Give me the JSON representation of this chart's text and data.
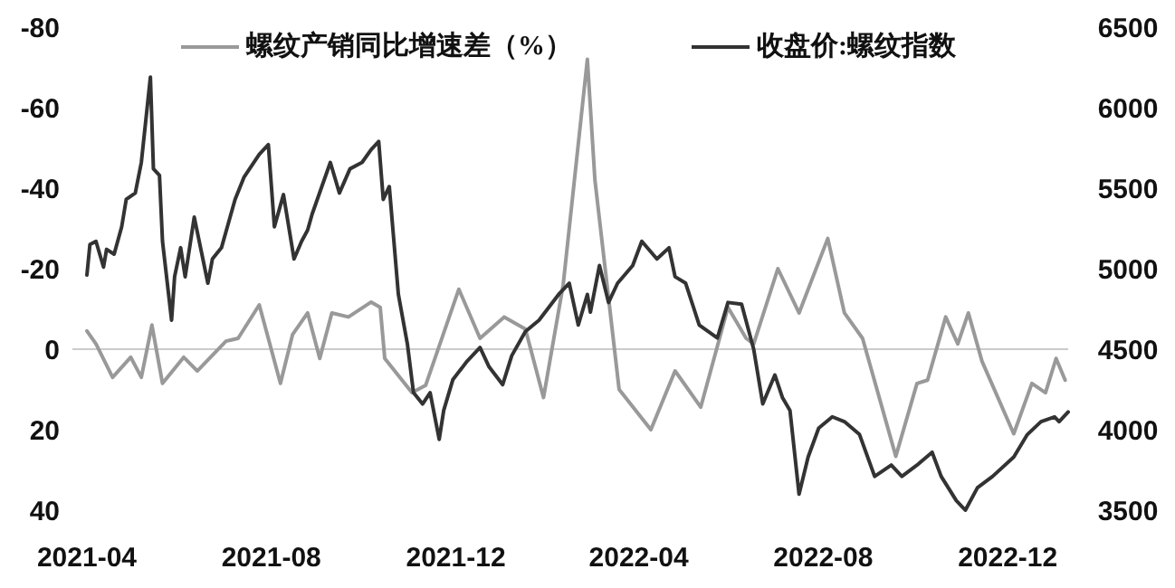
{
  "chart_data": {
    "type": "line",
    "legend": "top",
    "line_style": "solid",
    "marker": "none",
    "grid": false,
    "xlim": [
      "2021-04-01",
      "2023-01-10"
    ],
    "xticks": [
      "2021-04",
      "2021-08",
      "2021-12",
      "2022-04",
      "2022-08",
      "2022-12"
    ],
    "ylim": [
      40,
      -80
    ],
    "yticks": [
      -80,
      -60,
      -40,
      -20,
      0,
      20,
      40
    ],
    "y2lim": [
      3500,
      6500
    ],
    "y2ticks": [
      3500,
      4000,
      4500,
      5000,
      5500,
      6000,
      6500
    ],
    "ref_lines": [
      {
        "axis": "y",
        "value": 0,
        "color": "#cccccc"
      }
    ],
    "series": [
      {
        "name": "螺纹产销同比增速差（%）",
        "color": "#999999",
        "x": [
          "2021-04-01",
          "2021-04-07",
          "2021-04-18",
          "2021-04-30",
          "2021-05-07",
          "2021-05-14",
          "2021-05-21",
          "2021-06-04",
          "2021-06-13",
          "2021-07-02",
          "2021-07-10",
          "2021-07-24",
          "2021-08-07",
          "2021-08-15",
          "2021-08-25",
          "2021-09-02",
          "2021-09-10",
          "2021-09-21",
          "2021-10-06",
          "2021-10-12",
          "2021-10-15",
          "2021-11-02",
          "2021-11-11",
          "2021-12-03",
          "2021-12-17",
          "2022-01-02",
          "2022-01-16",
          "2022-01-28",
          "2022-02-10",
          "2022-02-26",
          "2022-03-03",
          "2022-03-19",
          "2022-04-09",
          "2022-04-25",
          "2022-05-12",
          "2022-05-30",
          "2022-06-11",
          "2022-06-16",
          "2022-07-02",
          "2022-07-16",
          "2022-08-04",
          "2022-08-15",
          "2022-08-27",
          "2022-09-18",
          "2022-10-02",
          "2022-10-09",
          "2022-10-21",
          "2022-10-29",
          "2022-11-05",
          "2022-11-14",
          "2022-12-05",
          "2022-12-17",
          "2022-12-26",
          "2023-01-02",
          "2023-01-08"
        ],
        "values": [
          -4.5,
          -1.3,
          7,
          2,
          7,
          -6,
          8.5,
          2,
          5.4,
          -2,
          -2.7,
          -11,
          8.5,
          -3.6,
          -9,
          2.3,
          -9,
          -8,
          -11.7,
          -10.4,
          2.3,
          10.8,
          9,
          -14.9,
          -2.7,
          -8,
          -5,
          12,
          -16,
          -72,
          -42,
          10,
          20,
          5.4,
          14.4,
          -10.4,
          -2.7,
          -1.3,
          -20,
          -9,
          -27.5,
          -9,
          -2.7,
          26.6,
          8.5,
          7.7,
          -8,
          -1.3,
          -9,
          3,
          21,
          8.5,
          10.8,
          2.3,
          7.7
        ]
      },
      {
        "name": "收盘价:螺纹指数",
        "color": "#333333",
        "axis": "y2",
        "x": [
          "2021-04-01",
          "2021-04-03",
          "2021-04-07",
          "2021-04-12",
          "2021-04-14",
          "2021-04-19",
          "2021-04-24",
          "2021-04-27",
          "2021-05-03",
          "2021-05-07",
          "2021-05-13",
          "2021-05-15",
          "2021-05-19",
          "2021-05-21",
          "2021-05-27",
          "2021-05-29",
          "2021-06-02",
          "2021-06-05",
          "2021-06-11",
          "2021-06-20",
          "2021-06-23",
          "2021-06-29",
          "2021-07-08",
          "2021-07-14",
          "2021-07-24",
          "2021-07-30",
          "2021-08-03",
          "2021-08-09",
          "2021-08-16",
          "2021-08-21",
          "2021-08-25",
          "2021-08-28",
          "2021-09-09",
          "2021-09-15",
          "2021-09-22",
          "2021-09-30",
          "2021-10-06",
          "2021-10-11",
          "2021-10-14",
          "2021-10-18",
          "2021-10-24",
          "2021-10-30",
          "2021-11-03",
          "2021-11-09",
          "2021-11-14",
          "2021-11-20",
          "2021-11-23",
          "2021-11-29",
          "2021-12-08",
          "2021-12-17",
          "2021-12-23",
          "2022-01-01",
          "2022-01-07",
          "2022-01-16",
          "2022-01-25",
          "2022-02-07",
          "2022-02-14",
          "2022-02-20",
          "2022-02-26",
          "2022-02-28",
          "2022-03-06",
          "2022-03-12",
          "2022-03-18",
          "2022-03-28",
          "2022-04-03",
          "2022-04-13",
          "2022-04-21",
          "2022-04-25",
          "2022-05-02",
          "2022-05-11",
          "2022-05-23",
          "2022-05-30",
          "2022-06-08",
          "2022-06-16",
          "2022-06-22",
          "2022-06-30",
          "2022-07-05",
          "2022-07-10",
          "2022-07-16",
          "2022-07-22",
          "2022-07-29",
          "2022-08-07",
          "2022-08-15",
          "2022-08-25",
          "2022-09-04",
          "2022-09-15",
          "2022-09-22",
          "2022-10-02",
          "2022-10-12",
          "2022-10-18",
          "2022-10-28",
          "2022-11-03",
          "2022-11-11",
          "2022-11-21",
          "2022-12-05",
          "2022-12-14",
          "2022-12-23",
          "2023-01-01",
          "2023-01-04",
          "2023-01-10"
        ],
        "values": [
          4960,
          5150,
          5170,
          5010,
          5120,
          5090,
          5260,
          5430,
          5470,
          5660,
          6190,
          5620,
          5580,
          5170,
          4680,
          4950,
          5130,
          4950,
          5320,
          4910,
          5060,
          5130,
          5430,
          5570,
          5710,
          5770,
          5260,
          5460,
          5060,
          5170,
          5240,
          5340,
          5660,
          5470,
          5620,
          5660,
          5740,
          5790,
          5430,
          5510,
          4840,
          4530,
          4230,
          4160,
          4230,
          3940,
          4120,
          4310,
          4420,
          4510,
          4390,
          4280,
          4460,
          4610,
          4680,
          4840,
          4910,
          4650,
          4840,
          4730,
          5020,
          4790,
          4910,
          5020,
          5170,
          5060,
          5130,
          4950,
          4910,
          4650,
          4570,
          4790,
          4780,
          4500,
          4160,
          4340,
          4200,
          4120,
          3600,
          3830,
          4010,
          4080,
          4050,
          3970,
          3710,
          3780,
          3710,
          3780,
          3860,
          3710,
          3560,
          3500,
          3640,
          3710,
          3830,
          3970,
          4050,
          4080,
          4050,
          4110
        ]
      }
    ]
  }
}
